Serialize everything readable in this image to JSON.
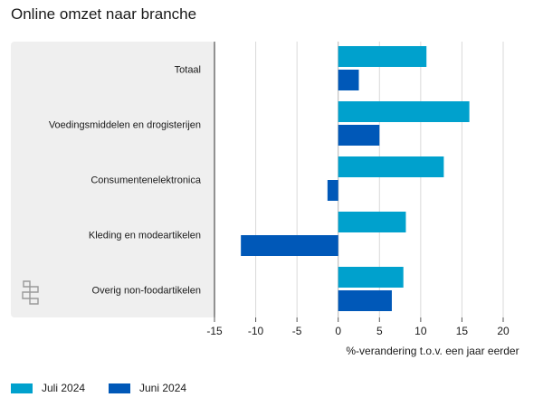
{
  "colors": {
    "juli": "#00a1cd",
    "juni": "#0058b8",
    "panel": "#efefef",
    "grid": "#d9d9d9"
  },
  "chart_data": {
    "type": "bar",
    "orientation": "horizontal",
    "title": "Online omzet naar branche",
    "xlabel": "%-verandering t.o.v. een jaar eerder",
    "xlim": [
      -15,
      20
    ],
    "ticks": [
      -15,
      -10,
      -5,
      0,
      5,
      10,
      15,
      20
    ],
    "categories": [
      "Totaal",
      "Voedingsmiddelen en drogisterijen",
      "Consumentenelektronica",
      "Kleding en modeartikelen",
      "Overig non-foodartikelen"
    ],
    "series": [
      {
        "name": "Juli 2024",
        "values": [
          10.7,
          15.9,
          12.8,
          8.2,
          7.9
        ]
      },
      {
        "name": "Juni 2024",
        "values": [
          2.5,
          5.0,
          -1.3,
          -11.8,
          6.5
        ]
      }
    ],
    "legend": "bottom-left",
    "grid": true
  },
  "logo": {
    "icon": "cbs-logo-icon"
  }
}
